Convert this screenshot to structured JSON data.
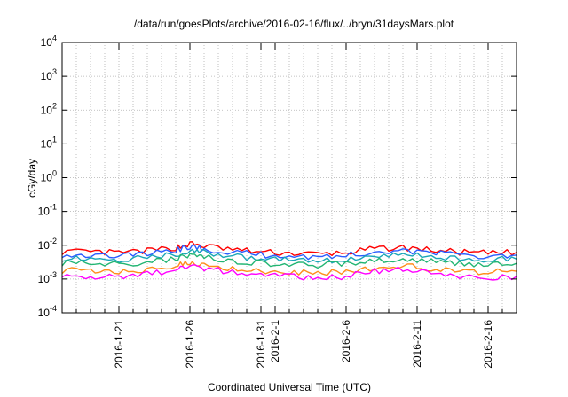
{
  "chart_data": {
    "type": "line",
    "title": "/data/run/goesPlots/archive/2016-02-16/flux/../bryn/31daysMars.plot",
    "xlabel": "Coordinated Universal Time (UTC)",
    "ylabel": "cGy/day",
    "yscale": "log",
    "ylim": [
      0.0001,
      10000
    ],
    "xlim": [
      "2016-01-17",
      "2016-02-18"
    ],
    "grid": true,
    "legend": "none",
    "y_ticks": [
      {
        "base": "10",
        "exp": "-4",
        "value": 0.0001
      },
      {
        "base": "10",
        "exp": "-3",
        "value": 0.001
      },
      {
        "base": "10",
        "exp": "-2",
        "value": 0.01
      },
      {
        "base": "10",
        "exp": "-1",
        "value": 0.1
      },
      {
        "base": "10",
        "exp": "0",
        "value": 1
      },
      {
        "base": "10",
        "exp": "1",
        "value": 10
      },
      {
        "base": "10",
        "exp": "2",
        "value": 100
      },
      {
        "base": "10",
        "exp": "3",
        "value": 1000
      },
      {
        "base": "10",
        "exp": "4",
        "value": 10000
      }
    ],
    "x_ticks": [
      {
        "date": "2016-01-21",
        "label": "2016-1-21"
      },
      {
        "date": "2016-01-26",
        "label": "2016-1-26"
      },
      {
        "date": "2016-01-31",
        "label": "2016-1-31"
      },
      {
        "date": "2016-02-01",
        "label": "2016-2-1"
      },
      {
        "date": "2016-02-06",
        "label": "2016-2-6"
      },
      {
        "date": "2016-02-11",
        "label": "2016-2-11"
      },
      {
        "date": "2016-02-16",
        "label": "2016-2-16"
      }
    ],
    "x": [
      "2016-01-17",
      "2016-01-19",
      "2016-01-21",
      "2016-01-23",
      "2016-01-25",
      "2016-01-26",
      "2016-01-27",
      "2016-01-29",
      "2016-01-31",
      "2016-02-02",
      "2016-02-04",
      "2016-02-06",
      "2016-02-08",
      "2016-02-10",
      "2016-02-12",
      "2016-02-14",
      "2016-02-16",
      "2016-02-18"
    ],
    "series": [
      {
        "color": "#ff0000",
        "values": [
          0.0065,
          0.0062,
          0.006,
          0.0068,
          0.0085,
          0.011,
          0.0095,
          0.0075,
          0.0063,
          0.0058,
          0.0055,
          0.006,
          0.0078,
          0.0085,
          0.0072,
          0.0062,
          0.0058,
          0.0062
        ]
      },
      {
        "color": "#2a5cff",
        "values": [
          0.0053,
          0.0051,
          0.0049,
          0.0056,
          0.007,
          0.009,
          0.0078,
          0.0062,
          0.0052,
          0.0048,
          0.0046,
          0.005,
          0.0064,
          0.007,
          0.0059,
          0.0051,
          0.0048,
          0.0051
        ]
      },
      {
        "color": "#1aa6b7",
        "values": [
          0.0041,
          0.0039,
          0.0038,
          0.0043,
          0.0054,
          0.0069,
          0.006,
          0.0047,
          0.004,
          0.0037,
          0.0035,
          0.0038,
          0.0049,
          0.0054,
          0.0045,
          0.0039,
          0.0037,
          0.0039
        ]
      },
      {
        "color": "#22b573",
        "values": [
          0.003,
          0.0029,
          0.0028,
          0.0032,
          0.004,
          0.0051,
          0.0044,
          0.0035,
          0.003,
          0.0027,
          0.0026,
          0.0028,
          0.0036,
          0.004,
          0.0033,
          0.0029,
          0.0027,
          0.0029
        ]
      },
      {
        "color": "#ff8c1a",
        "values": [
          0.0018,
          0.0017,
          0.0016,
          0.0019,
          0.0025,
          0.0032,
          0.0027,
          0.0021,
          0.0018,
          0.0016,
          0.0015,
          0.0017,
          0.0022,
          0.0025,
          0.002,
          0.0017,
          0.0016,
          0.0017
        ]
      },
      {
        "color": "#ff00ff",
        "values": [
          0.0014,
          0.0012,
          0.0011,
          0.0014,
          0.0019,
          0.0026,
          0.0021,
          0.0016,
          0.0013,
          0.0012,
          0.0011,
          0.0012,
          0.0017,
          0.0019,
          0.0015,
          0.0012,
          0.0011,
          0.0012
        ]
      }
    ]
  }
}
